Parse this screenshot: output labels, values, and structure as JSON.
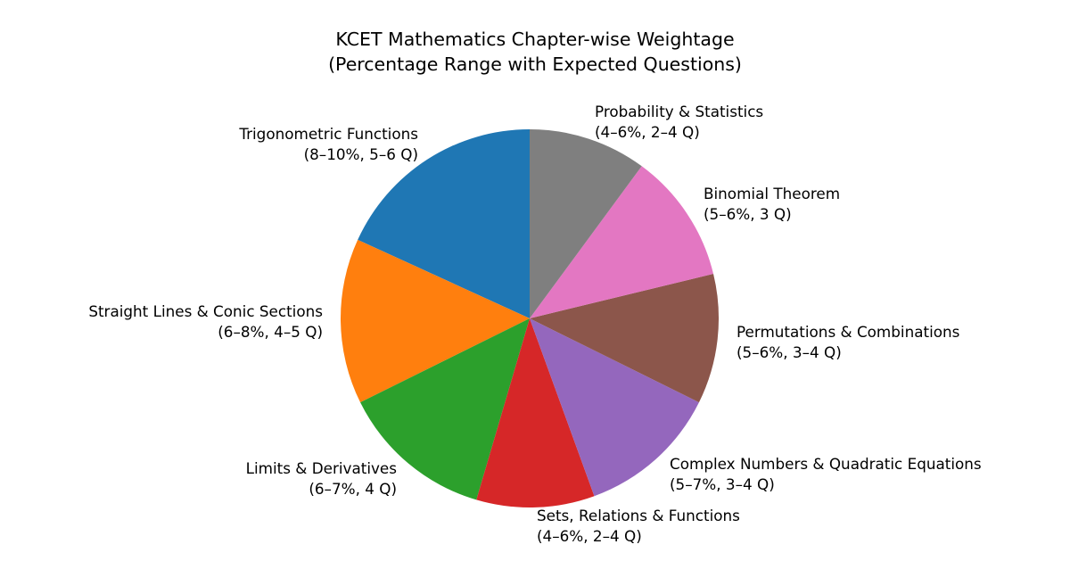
{
  "chart_data": {
    "type": "pie",
    "title": "KCET Mathematics Chapter-wise Weightage",
    "subtitle": "(Percentage Range with Expected Questions)",
    "start_angle": 90,
    "direction": "counterclockwise",
    "categories": [
      "Trigonometric Functions",
      "Straight Lines & Conic Sections",
      "Limits & Derivatives",
      "Sets, Relations & Functions",
      "Complex Numbers & Quadratic Equations",
      "Permutations & Combinations",
      "Binomial Theorem",
      "Probability & Statistics"
    ],
    "values": [
      9,
      7,
      6.5,
      5,
      6,
      5.5,
      5.5,
      5
    ],
    "slices": [
      {
        "name": "Trigonometric Functions",
        "range": "8–10%",
        "questions": "5–6 Q",
        "value": 9,
        "color": "#1f77b4",
        "label_line1": "Trigonometric Functions",
        "label_line2": "(8–10%, 5–6 Q)"
      },
      {
        "name": "Straight Lines & Conic Sections",
        "range": "6–8%",
        "questions": "4–5 Q",
        "value": 7,
        "color": "#ff7f0e",
        "label_line1": "Straight Lines & Conic Sections",
        "label_line2": "(6–8%, 4–5 Q)"
      },
      {
        "name": "Limits & Derivatives",
        "range": "6–7%",
        "questions": "4 Q",
        "value": 6.5,
        "color": "#2ca02c",
        "label_line1": "Limits & Derivatives",
        "label_line2": "(6–7%, 4 Q)"
      },
      {
        "name": "Sets, Relations & Functions",
        "range": "4–6%",
        "questions": "2–4 Q",
        "value": 5,
        "color": "#d62728",
        "label_line1": "Sets, Relations & Functions",
        "label_line2": "(4–6%, 2–4 Q)"
      },
      {
        "name": "Complex Numbers & Quadratic Equations",
        "range": "5–7%",
        "questions": "3–4 Q",
        "value": 6,
        "color": "#9467bd",
        "label_line1": "Complex Numbers & Quadratic Equations",
        "label_line2": "(5–7%, 3–4 Q)"
      },
      {
        "name": "Permutations & Combinations",
        "range": "5–6%",
        "questions": "3–4 Q",
        "value": 5.5,
        "color": "#8c564b",
        "label_line1": "Permutations & Combinations",
        "label_line2": "(5–6%, 3–4 Q)"
      },
      {
        "name": "Binomial Theorem",
        "range": "5–6%",
        "questions": "3 Q",
        "value": 5.5,
        "color": "#e377c2",
        "label_line1": "Binomial Theorem",
        "label_line2": "(5–6%, 3 Q)"
      },
      {
        "name": "Probability & Statistics",
        "range": "4–6%",
        "questions": "2–4 Q",
        "value": 5,
        "color": "#7f7f7f",
        "label_line1": "Probability & Statistics",
        "label_line2": "(4–6%, 2–4 Q)"
      }
    ],
    "legend": null
  }
}
